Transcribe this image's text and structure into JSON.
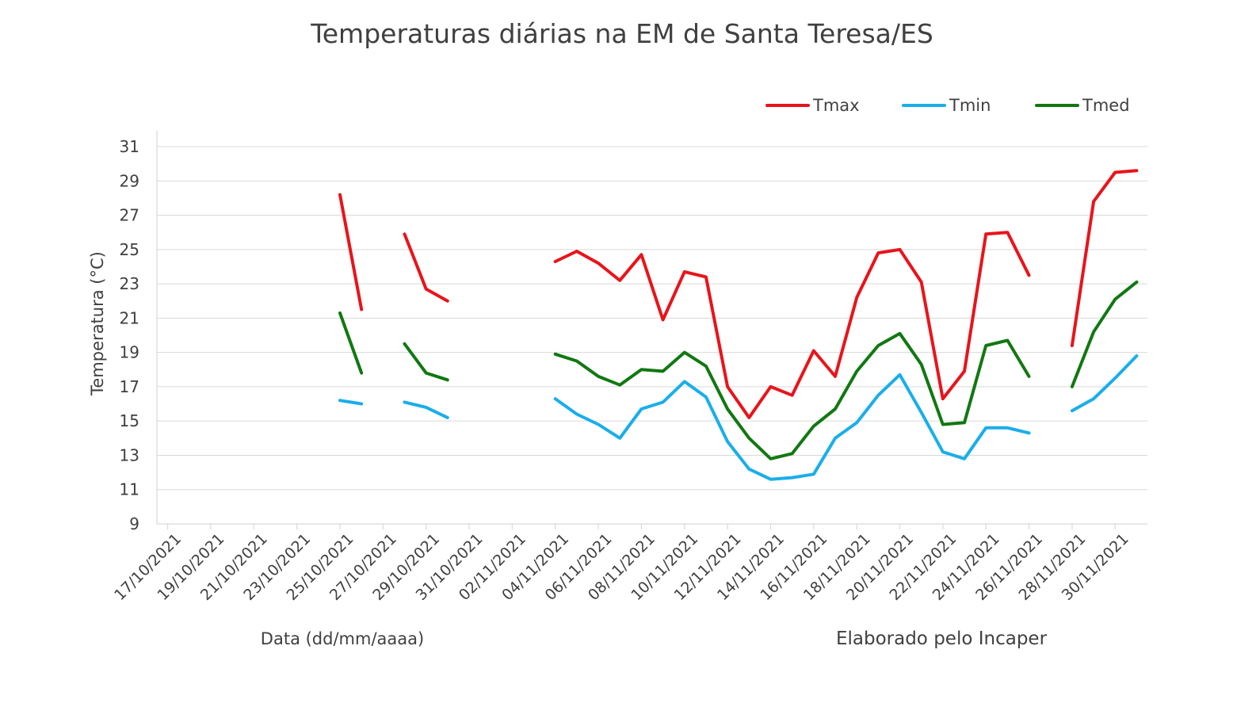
{
  "chart_data": {
    "type": "line",
    "title": "Temperaturas diárias na EM de Santa Teresa/ES",
    "xlabel": "Data (dd/mm/aaaa)",
    "ylabel": "Temperatura (°C)",
    "note": "Elaborado pelo Incaper",
    "ylim": [
      9,
      31
    ],
    "yticks": [
      9,
      11,
      13,
      15,
      17,
      19,
      21,
      23,
      25,
      27,
      29,
      31
    ],
    "xtick_labels": [
      "17/10/2021",
      "19/10/2021",
      "21/10/2021",
      "23/10/2021",
      "25/10/2021",
      "27/10/2021",
      "29/10/2021",
      "31/10/2021",
      "02/11/2021",
      "04/11/2021",
      "06/11/2021",
      "08/11/2021",
      "10/11/2021",
      "12/11/2021",
      "14/11/2021",
      "16/11/2021",
      "18/11/2021",
      "20/11/2021",
      "22/11/2021",
      "24/11/2021",
      "26/11/2021",
      "28/11/2021",
      "30/11/2021"
    ],
    "x": [
      "17/10/2021",
      "18/10/2021",
      "19/10/2021",
      "20/10/2021",
      "21/10/2021",
      "22/10/2021",
      "23/10/2021",
      "24/10/2021",
      "25/10/2021",
      "26/10/2021",
      "27/10/2021",
      "28/10/2021",
      "29/10/2021",
      "30/10/2021",
      "31/10/2021",
      "01/11/2021",
      "02/11/2021",
      "03/11/2021",
      "04/11/2021",
      "05/11/2021",
      "06/11/2021",
      "07/11/2021",
      "08/11/2021",
      "09/11/2021",
      "10/11/2021",
      "11/11/2021",
      "12/11/2021",
      "13/11/2021",
      "14/11/2021",
      "15/11/2021",
      "16/11/2021",
      "17/11/2021",
      "18/11/2021",
      "19/11/2021",
      "20/11/2021",
      "21/11/2021",
      "22/11/2021",
      "23/11/2021",
      "24/11/2021",
      "25/11/2021",
      "26/11/2021",
      "27/11/2021",
      "28/11/2021",
      "29/11/2021",
      "30/11/2021",
      "01/12/2021"
    ],
    "grid": true,
    "legend_position": "top-right",
    "series": [
      {
        "name": "Tmax",
        "color": "#e8141b",
        "values": [
          null,
          null,
          null,
          null,
          null,
          null,
          null,
          null,
          28.2,
          21.5,
          null,
          25.9,
          22.7,
          22.0,
          null,
          null,
          null,
          null,
          24.3,
          24.9,
          24.2,
          23.2,
          24.7,
          20.9,
          23.7,
          23.4,
          17.0,
          15.2,
          17.0,
          16.5,
          19.1,
          17.6,
          22.2,
          24.8,
          25.0,
          23.1,
          16.3,
          17.9,
          25.9,
          26.0,
          23.5,
          null,
          19.4,
          27.8,
          29.5,
          29.6
        ]
      },
      {
        "name": "Tmin",
        "color": "#1aaeea",
        "values": [
          null,
          null,
          null,
          null,
          null,
          null,
          null,
          null,
          16.2,
          16.0,
          null,
          16.1,
          15.8,
          15.2,
          null,
          null,
          null,
          null,
          16.3,
          15.4,
          14.8,
          14.0,
          15.7,
          16.1,
          17.3,
          16.4,
          13.8,
          12.2,
          11.6,
          11.7,
          11.9,
          14.0,
          14.9,
          16.5,
          17.7,
          15.5,
          13.2,
          12.8,
          14.6,
          14.6,
          14.3,
          null,
          15.6,
          16.3,
          17.5,
          18.8
        ]
      },
      {
        "name": "Tmed",
        "color": "#117811",
        "values": [
          null,
          null,
          null,
          null,
          null,
          null,
          null,
          null,
          21.3,
          17.8,
          null,
          19.5,
          17.8,
          17.4,
          null,
          null,
          null,
          null,
          18.9,
          18.5,
          17.6,
          17.1,
          18.0,
          17.9,
          19.0,
          18.2,
          15.7,
          14.0,
          12.8,
          13.1,
          14.7,
          15.7,
          17.9,
          19.4,
          20.1,
          18.3,
          14.8,
          14.9,
          19.4,
          19.7,
          17.6,
          null,
          17.0,
          20.2,
          22.1,
          23.1
        ]
      }
    ]
  }
}
